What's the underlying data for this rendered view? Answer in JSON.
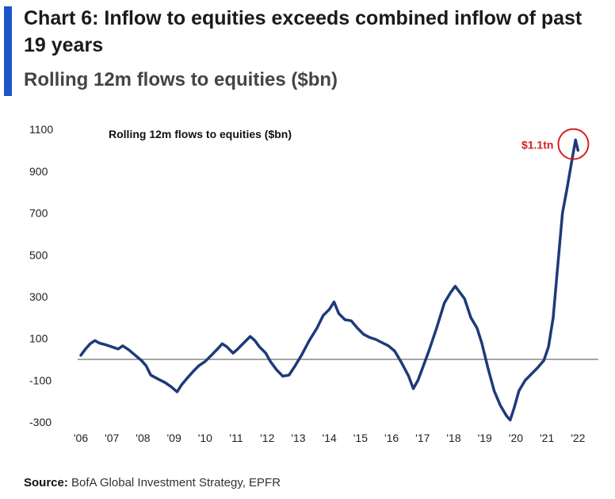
{
  "header": {
    "title": "Chart 6: Inflow to equities exceeds combined inflow of past 19 years",
    "subtitle": "Rolling 12m flows to equities ($bn)",
    "accent_color": "#1a56c8"
  },
  "footer": {
    "source_label": "Source:",
    "source_text": "BofA Global Investment Strategy, EPFR"
  },
  "chart_data": {
    "type": "line",
    "title": "Rolling 12m flows to equities ($bn)",
    "xlabel": "",
    "ylabel": "",
    "x_ticks": [
      "'06",
      "'07",
      "'08",
      "'09",
      "'10",
      "'11",
      "'12",
      "'13",
      "'14",
      "'15",
      "'16",
      "'17",
      "'18",
      "'19",
      "'20",
      "'21",
      "'22"
    ],
    "y_ticks": [
      1100,
      900,
      700,
      500,
      300,
      100,
      -100,
      -300
    ],
    "xlim": [
      2006,
      2022.4
    ],
    "ylim": [
      -330,
      1150
    ],
    "grid": false,
    "zero_line": true,
    "line_color": "#1f3a7a",
    "annotation": {
      "text": "$1.1tn",
      "x": 2021.85,
      "y": 1030,
      "color": "#d62020"
    },
    "series": [
      {
        "values": [
          [
            2006.0,
            20
          ],
          [
            2006.15,
            50
          ],
          [
            2006.3,
            75
          ],
          [
            2006.45,
            90
          ],
          [
            2006.6,
            78
          ],
          [
            2006.8,
            70
          ],
          [
            2007.0,
            60
          ],
          [
            2007.2,
            50
          ],
          [
            2007.35,
            65
          ],
          [
            2007.55,
            45
          ],
          [
            2007.75,
            20
          ],
          [
            2007.95,
            -5
          ],
          [
            2008.1,
            -30
          ],
          [
            2008.25,
            -75
          ],
          [
            2008.5,
            -95
          ],
          [
            2008.7,
            -110
          ],
          [
            2008.9,
            -130
          ],
          [
            2009.1,
            -155
          ],
          [
            2009.25,
            -120
          ],
          [
            2009.45,
            -85
          ],
          [
            2009.6,
            -60
          ],
          [
            2009.8,
            -30
          ],
          [
            2010.0,
            -10
          ],
          [
            2010.2,
            20
          ],
          [
            2010.4,
            50
          ],
          [
            2010.55,
            75
          ],
          [
            2010.7,
            60
          ],
          [
            2010.9,
            30
          ],
          [
            2011.05,
            50
          ],
          [
            2011.25,
            80
          ],
          [
            2011.45,
            110
          ],
          [
            2011.6,
            90
          ],
          [
            2011.75,
            60
          ],
          [
            2011.95,
            30
          ],
          [
            2012.1,
            -10
          ],
          [
            2012.3,
            -50
          ],
          [
            2012.5,
            -80
          ],
          [
            2012.7,
            -75
          ],
          [
            2012.9,
            -30
          ],
          [
            2013.1,
            20
          ],
          [
            2013.35,
            90
          ],
          [
            2013.6,
            150
          ],
          [
            2013.8,
            210
          ],
          [
            2014.0,
            240
          ],
          [
            2014.15,
            275
          ],
          [
            2014.3,
            220
          ],
          [
            2014.5,
            190
          ],
          [
            2014.7,
            185
          ],
          [
            2014.9,
            150
          ],
          [
            2015.1,
            120
          ],
          [
            2015.3,
            105
          ],
          [
            2015.5,
            95
          ],
          [
            2015.7,
            80
          ],
          [
            2015.9,
            65
          ],
          [
            2016.1,
            40
          ],
          [
            2016.3,
            -10
          ],
          [
            2016.55,
            -80
          ],
          [
            2016.7,
            -140
          ],
          [
            2016.85,
            -100
          ],
          [
            2017.0,
            -40
          ],
          [
            2017.2,
            40
          ],
          [
            2017.45,
            150
          ],
          [
            2017.7,
            270
          ],
          [
            2017.9,
            320
          ],
          [
            2018.05,
            350
          ],
          [
            2018.2,
            320
          ],
          [
            2018.35,
            290
          ],
          [
            2018.55,
            200
          ],
          [
            2018.75,
            150
          ],
          [
            2018.9,
            80
          ],
          [
            2019.1,
            -40
          ],
          [
            2019.3,
            -150
          ],
          [
            2019.5,
            -220
          ],
          [
            2019.7,
            -270
          ],
          [
            2019.82,
            -290
          ],
          [
            2019.95,
            -230
          ],
          [
            2020.1,
            -150
          ],
          [
            2020.3,
            -100
          ],
          [
            2020.5,
            -70
          ],
          [
            2020.7,
            -40
          ],
          [
            2020.9,
            -5
          ],
          [
            2021.05,
            60
          ],
          [
            2021.2,
            200
          ],
          [
            2021.35,
            450
          ],
          [
            2021.5,
            700
          ],
          [
            2021.65,
            820
          ],
          [
            2021.8,
            950
          ],
          [
            2021.92,
            1050
          ],
          [
            2022.0,
            1000
          ]
        ]
      }
    ]
  }
}
